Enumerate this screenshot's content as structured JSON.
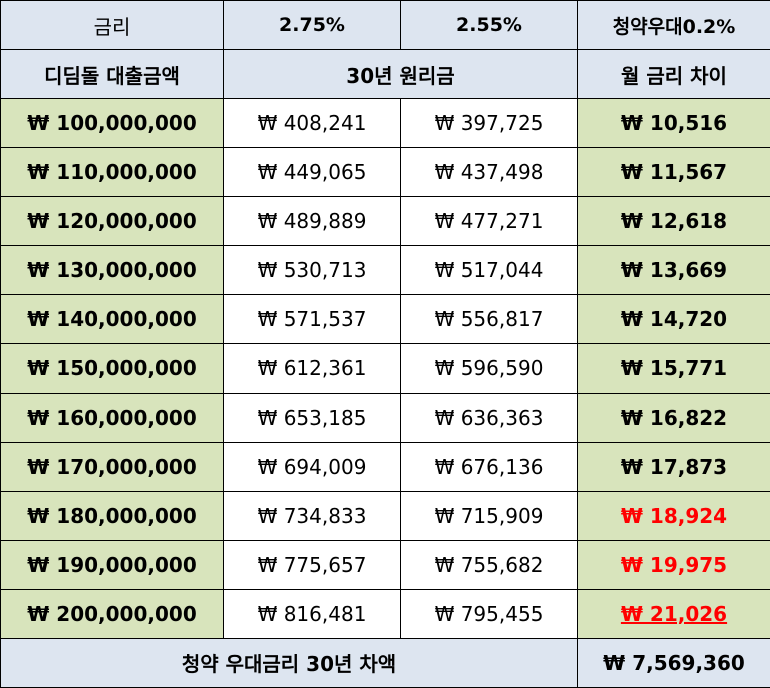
{
  "header": {
    "rate_label": "금리",
    "rate_a": "2.75%",
    "rate_b": "2.55%",
    "rate_diff": "청약우대0.2%",
    "loan_col": "디딤돌 대출금액",
    "principal_col": "30년 원리금",
    "diff_col": "월 금리 차이"
  },
  "rows": [
    {
      "amount": "₩ 100,000,000",
      "pay_a": "₩ 408,241",
      "pay_b": "₩ 397,725",
      "diff": "₩ 10,516",
      "diff_color": "#000000"
    },
    {
      "amount": "₩ 110,000,000",
      "pay_a": "₩ 449,065",
      "pay_b": "₩ 437,498",
      "diff": "₩ 11,567",
      "diff_color": "#000000"
    },
    {
      "amount": "₩ 120,000,000",
      "pay_a": "₩ 489,889",
      "pay_b": "₩ 477,271",
      "diff": "₩ 12,618",
      "diff_color": "#000000"
    },
    {
      "amount": "₩ 130,000,000",
      "pay_a": "₩ 530,713",
      "pay_b": "₩ 517,044",
      "diff": "₩ 13,669",
      "diff_color": "#000000"
    },
    {
      "amount": "₩ 140,000,000",
      "pay_a": "₩ 571,537",
      "pay_b": "₩ 556,817",
      "diff": "₩ 14,720",
      "diff_color": "#000000"
    },
    {
      "amount": "₩ 150,000,000",
      "pay_a": "₩ 612,361",
      "pay_b": "₩ 596,590",
      "diff": "₩ 15,771",
      "diff_color": "#000000"
    },
    {
      "amount": "₩ 160,000,000",
      "pay_a": "₩ 653,185",
      "pay_b": "₩ 636,363",
      "diff": "₩ 16,822",
      "diff_color": "#000000"
    },
    {
      "amount": "₩ 170,000,000",
      "pay_a": "₩ 694,009",
      "pay_b": "₩ 676,136",
      "diff": "₩ 17,873",
      "diff_color": "#000000"
    },
    {
      "amount": "₩ 180,000,000",
      "pay_a": "₩ 734,833",
      "pay_b": "₩ 715,909",
      "diff": "₩ 18,924",
      "diff_color": "#ff0000"
    },
    {
      "amount": "₩ 190,000,000",
      "pay_a": "₩ 775,657",
      "pay_b": "₩ 755,682",
      "diff": "₩ 19,975",
      "diff_color": "#ff0000"
    },
    {
      "amount": "₩ 200,000,000",
      "pay_a": "₩ 816,481",
      "pay_b": "₩ 795,455",
      "diff": "₩ 21,026",
      "diff_color": "#ff0000"
    }
  ],
  "footer": {
    "label": "청약 우대금리 30년 차액",
    "total": "₩ 7,569,360"
  },
  "colors": {
    "header_bg": "#dde5f0",
    "amount_bg": "#d8e4bc",
    "highlight_red": "#ff0000"
  }
}
